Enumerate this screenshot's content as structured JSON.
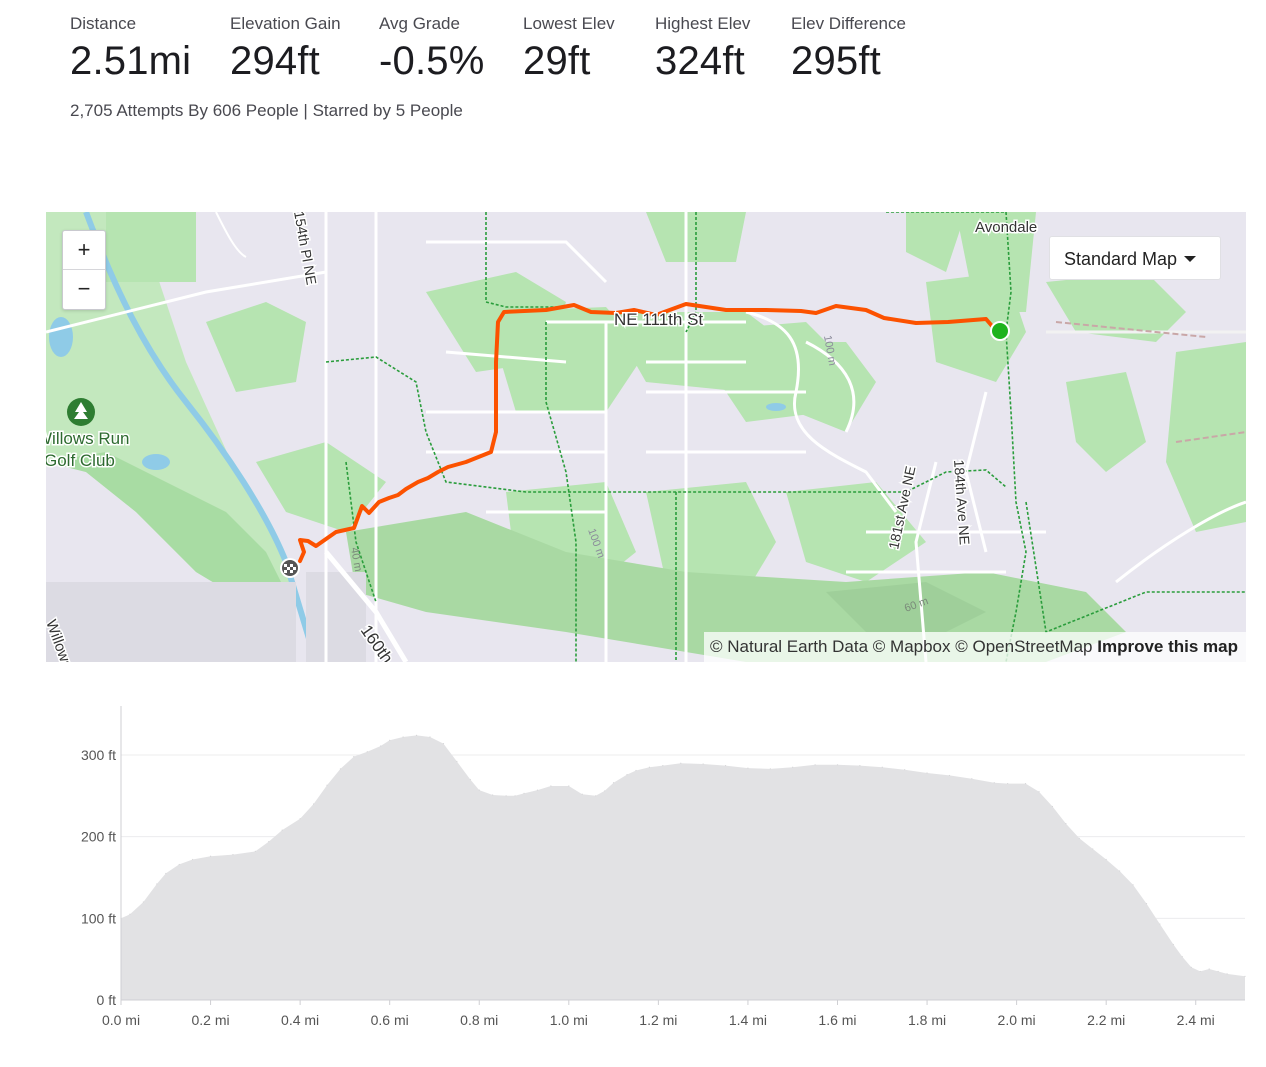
{
  "stats": [
    {
      "label": "Distance",
      "value": "2.51mi"
    },
    {
      "label": "Elevation Gain",
      "value": "294ft"
    },
    {
      "label": "Avg Grade",
      "value": "-0.5%"
    },
    {
      "label": "Lowest Elev",
      "value": "29ft"
    },
    {
      "label": "Highest Elev",
      "value": "324ft"
    },
    {
      "label": "Elev Difference",
      "value": "295ft"
    }
  ],
  "attempts_text": "2,705 Attempts By 606 People | Starred by 5 People",
  "map": {
    "zoom_in_label": "+",
    "zoom_out_label": "−",
    "map_type_selected": "Standard Map",
    "attribution": "© Natural Earth Data © Mapbox © OpenStreetMap",
    "improve_link": "Improve this map",
    "labels": {
      "avondale": "Avondale",
      "ne_111th": "NE 111th St",
      "golf_1": "Willows Run",
      "golf_2": "Golf Club",
      "pl_154": "154th Pl NE",
      "ave_181": "181st Ave NE",
      "ave_184": "184th Ave NE",
      "hwy_160": "160th",
      "willows": "Willows",
      "contour_40": "40 m",
      "contour_60": "60 m",
      "contour_100": "100 m"
    },
    "route_color": "#fc5200",
    "start_color": "#1db31d"
  },
  "chart_data": {
    "type": "area",
    "title": "",
    "xlabel": "",
    "ylabel": "",
    "x_unit": "mi",
    "y_unit": "ft",
    "xlim": [
      0,
      2.51
    ],
    "ylim": [
      0,
      360
    ],
    "x_ticks": [
      "0.0 mi",
      "0.2 mi",
      "0.4 mi",
      "0.6 mi",
      "0.8 mi",
      "1.0 mi",
      "1.2 mi",
      "1.4 mi",
      "1.6 mi",
      "1.8 mi",
      "2.0 mi",
      "2.2 mi",
      "2.4 mi"
    ],
    "y_ticks": [
      "0 ft",
      "100 ft",
      "200 ft",
      "300 ft"
    ],
    "x": [
      0.0,
      0.02,
      0.05,
      0.08,
      0.1,
      0.13,
      0.16,
      0.2,
      0.25,
      0.3,
      0.33,
      0.36,
      0.4,
      0.43,
      0.46,
      0.49,
      0.52,
      0.55,
      0.58,
      0.6,
      0.63,
      0.66,
      0.69,
      0.72,
      0.75,
      0.78,
      0.8,
      0.83,
      0.86,
      0.88,
      0.9,
      0.93,
      0.96,
      1.0,
      1.03,
      1.06,
      1.08,
      1.1,
      1.13,
      1.15,
      1.18,
      1.21,
      1.25,
      1.3,
      1.35,
      1.4,
      1.45,
      1.5,
      1.55,
      1.6,
      1.65,
      1.7,
      1.75,
      1.8,
      1.85,
      1.9,
      1.95,
      1.98,
      2.02,
      2.05,
      2.08,
      2.11,
      2.14,
      2.17,
      2.2,
      2.23,
      2.26,
      2.29,
      2.32,
      2.35,
      2.37,
      2.39,
      2.41,
      2.43,
      2.45,
      2.47,
      2.51
    ],
    "values": [
      100,
      105,
      120,
      142,
      155,
      166,
      172,
      176,
      178,
      182,
      194,
      208,
      222,
      240,
      263,
      283,
      298,
      304,
      311,
      318,
      322,
      324,
      322,
      314,
      292,
      270,
      257,
      251,
      250,
      250,
      253,
      257,
      262,
      262,
      252,
      250,
      256,
      266,
      276,
      281,
      285,
      287,
      290,
      289,
      287,
      284,
      283,
      285,
      288,
      288,
      287,
      285,
      282,
      278,
      275,
      271,
      266,
      265,
      265,
      255,
      237,
      216,
      198,
      185,
      172,
      158,
      141,
      118,
      93,
      68,
      53,
      40,
      35,
      38,
      35,
      32,
      29
    ]
  }
}
